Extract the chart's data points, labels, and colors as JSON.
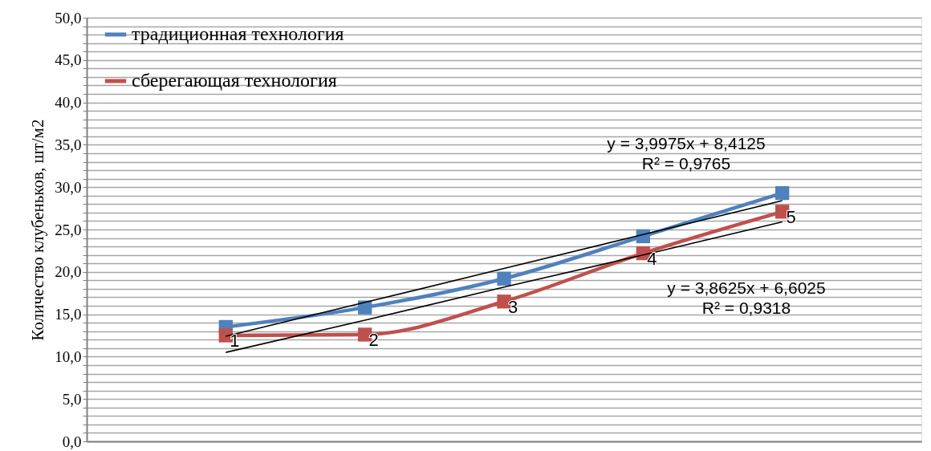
{
  "chart_data": {
    "type": "line",
    "ylabel": "Количество клубеньков, шт/м2",
    "categories": [
      null,
      null,
      null,
      null,
      null
    ],
    "series": [
      {
        "name": "традиционная технология",
        "color": "#4f81bd",
        "values": [
          13.5,
          15.8,
          19.2,
          24.2,
          29.3
        ],
        "marker": "square"
      },
      {
        "name": "сберегающая технология",
        "color": "#c0504d",
        "values": [
          12.5,
          12.6,
          16.5,
          22.2,
          27.1
        ],
        "marker": "square"
      },
      {
        "color": "#000000",
        "values": [
          12.4,
          16.4,
          20.4,
          24.4,
          28.4
        ],
        "marker": "none"
      },
      {
        "color": "#000000",
        "values": [
          10.5,
          14.3,
          18.2,
          22.0,
          25.9
        ],
        "marker": "none"
      }
    ],
    "ylim": [
      0,
      50
    ],
    "yticks": [
      {
        "value": 0,
        "label": "0,0"
      },
      {
        "value": 1,
        "label": null
      },
      {
        "value": 2,
        "label": null
      },
      {
        "value": 3,
        "label": null
      },
      {
        "value": 4,
        "label": null
      },
      {
        "value": 5,
        "label": "5,0"
      },
      {
        "value": 6,
        "label": null
      },
      {
        "value": 7,
        "label": null
      },
      {
        "value": 8,
        "label": null
      },
      {
        "value": 9,
        "label": null
      },
      {
        "value": 10,
        "label": "10,0"
      },
      {
        "value": 11,
        "label": null
      },
      {
        "value": 12,
        "label": null
      },
      {
        "value": 13,
        "label": null
      },
      {
        "value": 14,
        "label": null
      },
      {
        "value": 15,
        "label": "15,0"
      },
      {
        "value": 16,
        "label": null
      },
      {
        "value": 17,
        "label": null
      },
      {
        "value": 18,
        "label": null
      },
      {
        "value": 19,
        "label": null
      },
      {
        "value": 20,
        "label": "20,0"
      },
      {
        "value": 21,
        "label": null
      },
      {
        "value": 22,
        "label": null
      },
      {
        "value": 23,
        "label": null
      },
      {
        "value": 24,
        "label": null
      },
      {
        "value": 25,
        "label": "25,0"
      },
      {
        "value": 26,
        "label": null
      },
      {
        "value": 27,
        "label": null
      },
      {
        "value": 28,
        "label": null
      },
      {
        "value": 29,
        "label": null
      },
      {
        "value": 30,
        "label": "30,0"
      },
      {
        "value": 31,
        "label": null
      },
      {
        "value": 32,
        "label": null
      },
      {
        "value": 33,
        "label": null
      },
      {
        "value": 34,
        "label": null
      },
      {
        "value": 35,
        "label": "35,0"
      },
      {
        "value": 36,
        "label": null
      },
      {
        "value": 37,
        "label": null
      },
      {
        "value": 38,
        "label": null
      },
      {
        "value": 39,
        "label": null
      },
      {
        "value": 40,
        "label": "40,0"
      },
      {
        "value": 41,
        "label": null
      },
      {
        "value": 42,
        "label": null
      },
      {
        "value": 43,
        "label": null
      },
      {
        "value": 44,
        "label": null
      },
      {
        "value": 45,
        "label": "45,0"
      },
      {
        "value": 46,
        "label": null
      },
      {
        "value": 47,
        "label": null
      },
      {
        "value": 48,
        "label": null
      },
      {
        "value": 49,
        "label": null
      },
      {
        "value": 50,
        "label": "50,0"
      }
    ],
    "grid": "y",
    "legend": "top left",
    "tick_labels": "y",
    "line_style": "solid",
    "annotations": [
      "y = 3,9975x + 8,4125",
      "R² = 0,9765",
      "y = 3,8625x + 6,6025",
      "R² = 0,9318",
      {
        "text": "1",
        "y": 12.5
      },
      {
        "text": "2",
        "y": 12.6
      },
      {
        "text": "3",
        "y": 16.5
      },
      {
        "text": "4",
        "y": 22.2
      },
      {
        "text": "5",
        "y": 27.1
      }
    ]
  }
}
